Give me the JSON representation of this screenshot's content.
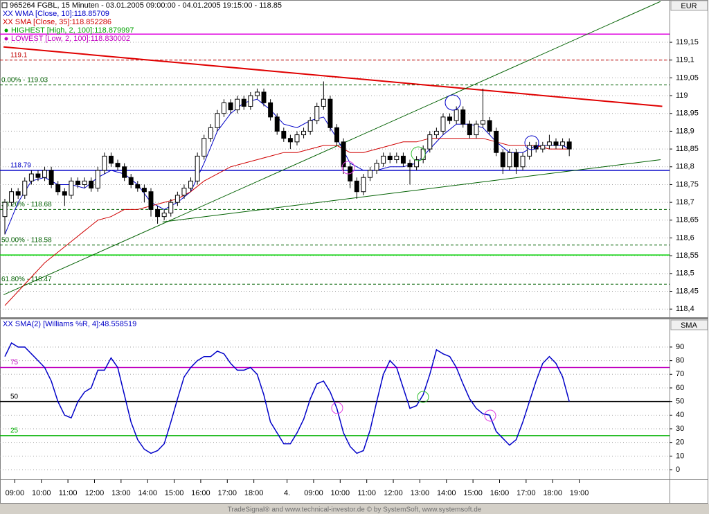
{
  "chart_data": [
    {
      "type": "candlestick",
      "title": "965264  FGBL, 15 Minuten - 03.01.2005 09:00:00 - 04.01.2005 19:15:00 - 118.85",
      "axis_label": "EUR",
      "xlim": [
        -0.73,
        100.1
      ],
      "xticks": [
        {
          "value": 1.5,
          "label": "09:00"
        },
        {
          "value": 5.5,
          "label": "10:00"
        },
        {
          "value": 9.5,
          "label": "11:00"
        },
        {
          "value": 13.5,
          "label": "12:00"
        },
        {
          "value": 17.5,
          "label": "13:00"
        },
        {
          "value": 21.5,
          "label": "14:00"
        },
        {
          "value": 25.5,
          "label": "15:00"
        },
        {
          "value": 29.5,
          "label": "16:00"
        },
        {
          "value": 33.5,
          "label": "17:00"
        },
        {
          "value": 37.5,
          "label": "18:00"
        },
        {
          "value": 42.5,
          "label": "4."
        },
        {
          "value": 46.5,
          "label": "09:00"
        },
        {
          "value": 50.5,
          "label": "10:00"
        },
        {
          "value": 54.5,
          "label": "11:00"
        },
        {
          "value": 58.5,
          "label": "12:00"
        },
        {
          "value": 62.5,
          "label": "13:00"
        },
        {
          "value": 66.5,
          "label": "14:00"
        },
        {
          "value": 70.5,
          "label": "15:00"
        },
        {
          "value": 74.5,
          "label": "16:00"
        },
        {
          "value": 78.5,
          "label": "17:00"
        },
        {
          "value": 82.5,
          "label": "18:00"
        },
        {
          "value": 86.5,
          "label": "19:00"
        }
      ],
      "ylim": [
        118.377,
        119.265
      ],
      "yticks": [
        {
          "value": 118.4,
          "label": "118,4"
        },
        {
          "value": 118.45,
          "label": "118,45"
        },
        {
          "value": 118.5,
          "label": "118,5"
        },
        {
          "value": 118.55,
          "label": "118,55"
        },
        {
          "value": 118.6,
          "label": "118,6"
        },
        {
          "value": 118.65,
          "label": "118,65"
        },
        {
          "value": 118.7,
          "label": "118,7"
        },
        {
          "value": 118.75,
          "label": "118,75"
        },
        {
          "value": 118.8,
          "label": "118,8"
        },
        {
          "value": 118.85,
          "label": "118,85"
        },
        {
          "value": 118.9,
          "label": "118,9"
        },
        {
          "value": 118.95,
          "label": "118,95"
        },
        {
          "value": 119,
          "label": "119"
        },
        {
          "value": 119.05,
          "label": "119,05"
        },
        {
          "value": 119.1,
          "label": "119,1"
        },
        {
          "value": 119.15,
          "label": "119,15"
        }
      ],
      "grid": true,
      "up_color": "#ffffff",
      "down_color": "#000000",
      "ohlc": [
        [
          118.66,
          118.71,
          118.61,
          118.7
        ],
        [
          118.7,
          118.74,
          118.69,
          118.73
        ],
        [
          118.73,
          118.74,
          118.71,
          118.72
        ],
        [
          118.72,
          118.77,
          118.71,
          118.76
        ],
        [
          118.76,
          118.79,
          118.75,
          118.78
        ],
        [
          118.78,
          118.79,
          118.76,
          118.77
        ],
        [
          118.77,
          118.8,
          118.76,
          118.79
        ],
        [
          118.79,
          118.8,
          118.74,
          118.75
        ],
        [
          118.75,
          118.76,
          118.72,
          118.73
        ],
        [
          118.73,
          118.74,
          118.69,
          118.72
        ],
        [
          118.72,
          118.77,
          118.71,
          118.76
        ],
        [
          118.76,
          118.77,
          118.74,
          118.75
        ],
        [
          118.75,
          118.77,
          118.74,
          118.76
        ],
        [
          118.76,
          118.77,
          118.73,
          118.74
        ],
        [
          118.74,
          118.8,
          118.73,
          118.79
        ],
        [
          118.79,
          118.84,
          118.78,
          118.83
        ],
        [
          118.83,
          118.84,
          118.8,
          118.81
        ],
        [
          118.81,
          118.82,
          118.79,
          118.8
        ],
        [
          118.8,
          118.81,
          118.76,
          118.77
        ],
        [
          118.77,
          118.78,
          118.74,
          118.75
        ],
        [
          118.75,
          118.76,
          118.73,
          118.74
        ],
        [
          118.74,
          118.75,
          118.7,
          118.73
        ],
        [
          118.73,
          118.74,
          118.66,
          118.68
        ],
        [
          118.68,
          118.69,
          118.64,
          118.66
        ],
        [
          118.66,
          118.68,
          118.65,
          118.67
        ],
        [
          118.67,
          118.71,
          118.66,
          118.7
        ],
        [
          118.7,
          118.73,
          118.69,
          118.72
        ],
        [
          118.72,
          118.75,
          118.71,
          118.74
        ],
        [
          118.74,
          118.77,
          118.73,
          118.76
        ],
        [
          118.76,
          118.84,
          118.75,
          118.83
        ],
        [
          118.83,
          118.89,
          118.82,
          118.88
        ],
        [
          118.88,
          118.92,
          118.87,
          118.91
        ],
        [
          118.91,
          118.96,
          118.9,
          118.95
        ],
        [
          118.95,
          118.99,
          118.94,
          118.98
        ],
        [
          118.98,
          118.99,
          118.95,
          118.96
        ],
        [
          118.96,
          119.0,
          118.95,
          118.99
        ],
        [
          118.99,
          119.0,
          118.96,
          118.97
        ],
        [
          118.97,
          119.01,
          118.96,
          119.0
        ],
        [
          119.0,
          119.02,
          118.99,
          119.01
        ],
        [
          119.01,
          119.02,
          118.97,
          118.98
        ],
        [
          118.98,
          118.99,
          118.93,
          118.94
        ],
        [
          118.94,
          118.95,
          118.89,
          118.9
        ],
        [
          118.9,
          118.91,
          118.87,
          118.88
        ],
        [
          118.88,
          118.89,
          118.85,
          118.87
        ],
        [
          118.87,
          118.9,
          118.86,
          118.89
        ],
        [
          118.89,
          118.91,
          118.88,
          118.9
        ],
        [
          118.9,
          118.94,
          118.89,
          118.93
        ],
        [
          118.93,
          118.98,
          118.92,
          118.97
        ],
        [
          118.97,
          119.04,
          118.96,
          118.99
        ],
        [
          118.99,
          119.0,
          118.9,
          118.91
        ],
        [
          118.91,
          118.92,
          118.86,
          118.87
        ],
        [
          118.87,
          118.88,
          118.78,
          118.8
        ],
        [
          118.8,
          118.81,
          118.74,
          118.76
        ],
        [
          118.76,
          118.77,
          118.71,
          118.73
        ],
        [
          118.73,
          118.78,
          118.72,
          118.77
        ],
        [
          118.77,
          118.8,
          118.76,
          118.79
        ],
        [
          118.79,
          118.82,
          118.78,
          118.81
        ],
        [
          118.81,
          118.84,
          118.8,
          118.83
        ],
        [
          118.83,
          118.84,
          118.81,
          118.82
        ],
        [
          118.82,
          118.84,
          118.81,
          118.83
        ],
        [
          118.83,
          118.84,
          118.8,
          118.81
        ],
        [
          118.81,
          118.82,
          118.75,
          118.8
        ],
        [
          118.8,
          118.83,
          118.79,
          118.82
        ],
        [
          118.82,
          118.86,
          118.81,
          118.85
        ],
        [
          118.85,
          118.9,
          118.84,
          118.89
        ],
        [
          118.89,
          118.91,
          118.88,
          118.9
        ],
        [
          118.9,
          118.95,
          118.89,
          118.94
        ],
        [
          118.94,
          118.95,
          118.92,
          118.93
        ],
        [
          118.93,
          118.97,
          118.92,
          118.96
        ],
        [
          118.96,
          118.97,
          118.91,
          118.92
        ],
        [
          118.92,
          118.93,
          118.88,
          118.89
        ],
        [
          118.89,
          118.93,
          118.88,
          118.92
        ],
        [
          118.92,
          119.02,
          118.91,
          118.93
        ],
        [
          118.93,
          118.94,
          118.89,
          118.9
        ],
        [
          118.9,
          118.91,
          118.83,
          118.84
        ],
        [
          118.84,
          118.85,
          118.78,
          118.8
        ],
        [
          118.8,
          118.85,
          118.79,
          118.84
        ],
        [
          118.84,
          118.85,
          118.78,
          118.8
        ],
        [
          118.8,
          118.84,
          118.79,
          118.83
        ],
        [
          118.83,
          118.87,
          118.82,
          118.86
        ],
        [
          118.86,
          118.87,
          118.84,
          118.85
        ],
        [
          118.85,
          118.87,
          118.84,
          118.86
        ],
        [
          118.86,
          118.89,
          118.85,
          118.87
        ],
        [
          118.87,
          118.88,
          118.85,
          118.86
        ],
        [
          118.86,
          118.88,
          118.85,
          118.87
        ],
        [
          118.87,
          118.88,
          118.83,
          118.85
        ]
      ],
      "overlays": [
        {
          "name": "XX WMA [Close, 10]:118.85709",
          "color": "#0000c8",
          "x": [
            0,
            2,
            4,
            6,
            8,
            10,
            12,
            14,
            16,
            18,
            20,
            22,
            24,
            26,
            28,
            30,
            32,
            34,
            36,
            38,
            40,
            42,
            44,
            46,
            48,
            50,
            52,
            54,
            56,
            58,
            60,
            62,
            64,
            66,
            68,
            70,
            72,
            74,
            76,
            78,
            80,
            82,
            84,
            85
          ],
          "values": [
            118.61,
            118.7,
            118.76,
            118.77,
            118.75,
            118.75,
            118.74,
            118.77,
            118.79,
            118.78,
            118.75,
            118.7,
            118.68,
            118.7,
            118.73,
            118.81,
            118.9,
            118.95,
            118.98,
            118.99,
            118.96,
            118.92,
            118.91,
            118.93,
            118.94,
            118.88,
            118.81,
            118.79,
            118.79,
            118.8,
            118.8,
            118.81,
            118.85,
            118.89,
            118.92,
            118.92,
            118.91,
            118.87,
            118.84,
            118.84,
            118.86,
            118.86,
            118.86,
            118.85
          ]
        },
        {
          "name": "XX SMA [Close, 35]:118.852286",
          "color": "#d00000",
          "x": [
            0,
            2,
            4,
            6,
            8,
            10,
            12,
            14,
            16,
            18,
            20,
            22,
            24,
            26,
            28,
            30,
            32,
            34,
            36,
            38,
            40,
            42,
            44,
            46,
            48,
            50,
            52,
            54,
            56,
            58,
            60,
            62,
            64,
            66,
            68,
            70,
            72,
            74,
            76,
            78,
            80,
            82,
            84,
            85
          ],
          "values": [
            118.41,
            118.45,
            118.49,
            118.53,
            118.56,
            118.59,
            118.62,
            118.65,
            118.66,
            118.68,
            118.68,
            118.69,
            118.7,
            118.71,
            118.73,
            118.76,
            118.78,
            118.8,
            118.81,
            118.82,
            118.83,
            118.84,
            118.84,
            118.85,
            118.86,
            118.86,
            118.84,
            118.84,
            118.85,
            118.86,
            118.87,
            118.87,
            118.88,
            118.88,
            118.88,
            118.88,
            118.88,
            118.87,
            118.86,
            118.86,
            118.86,
            118.85,
            118.85,
            118.85
          ]
        }
      ],
      "markers": [
        {
          "name": "HIGHEST [High, 2, 100]:118.879997",
          "color": "#00a000"
        },
        {
          "name": "LOWEST [Low, 2, 100]:118.830002",
          "color": "#c000c0"
        }
      ],
      "levels": [
        {
          "value": 119.173,
          "color": "#e000e0",
          "style": "solid"
        },
        {
          "value": 119.1,
          "label": "119.1",
          "color": "#c00000",
          "style": "dashed"
        },
        {
          "value": 119.03,
          "label": "0.00% - 119.03",
          "color": "#006000",
          "style": "dashed"
        },
        {
          "value": 118.79,
          "label": "118.79",
          "color": "#0000c8",
          "style": "solid"
        },
        {
          "value": 118.68,
          "label": "38.20% - 118.68",
          "color": "#006000",
          "style": "dashed"
        },
        {
          "value": 118.58,
          "label": "50.00% - 118.58",
          "color": "#006000",
          "style": "dashed"
        },
        {
          "value": 118.552,
          "color": "#00d000",
          "style": "solid"
        },
        {
          "value": 118.47,
          "label": "61.80% - 118.47",
          "color": "#006000",
          "style": "dashed"
        }
      ],
      "trendlines": [
        {
          "x": [
            -0.2,
            99
          ],
          "values": [
            119.137,
            118.97
          ],
          "color": "#e00000",
          "width": 2
        },
        {
          "x": [
            -0.2,
            98.75
          ],
          "values": [
            118.44,
            119.265
          ],
          "color": "#006000",
          "width": 1
        },
        {
          "x": [
            23.75,
            98.75
          ],
          "values": [
            118.645,
            118.82
          ],
          "color": "#006000",
          "width": 1
        }
      ]
    },
    {
      "type": "line",
      "title": "XX SMA(2) [Williams %R, 4]:48.558519",
      "axis_label": "SMA",
      "color": "#0000c8",
      "xlim": [
        -0.73,
        100.1
      ],
      "ylim": [
        -7.1,
        109.8
      ],
      "yticks": [
        0,
        10,
        20,
        30,
        40,
        50,
        60,
        70,
        80,
        90
      ],
      "grid": true,
      "levels": [
        {
          "value": 75,
          "label": "75",
          "color": "#c000c0",
          "style": "solid"
        },
        {
          "value": 50,
          "label": "50",
          "color": "#000000",
          "style": "solid"
        },
        {
          "value": 25,
          "label": "25",
          "color": "#00b000",
          "style": "solid"
        }
      ],
      "values": [
        83,
        93,
        90,
        90,
        85,
        80,
        75,
        65,
        50,
        40,
        38,
        50,
        57,
        60,
        73,
        73,
        82,
        75,
        55,
        35,
        22,
        15,
        12,
        14,
        19,
        35,
        52,
        68,
        75,
        80,
        83,
        83,
        87,
        85,
        78,
        73,
        73,
        75,
        70,
        55,
        35,
        27,
        19,
        19,
        27,
        37,
        52,
        63,
        65,
        57,
        45,
        27,
        17,
        12,
        14,
        29,
        50,
        70,
        80,
        75,
        60,
        45,
        47,
        55,
        70,
        88,
        85,
        83,
        75,
        63,
        52,
        45,
        41,
        40,
        28,
        23,
        18,
        22,
        35,
        50,
        65,
        78,
        83,
        78,
        68,
        50
      ]
    }
  ],
  "footer": "TradeSignal® and www.technical-investor.de © by SystemSoft, www.systemsoft.de"
}
